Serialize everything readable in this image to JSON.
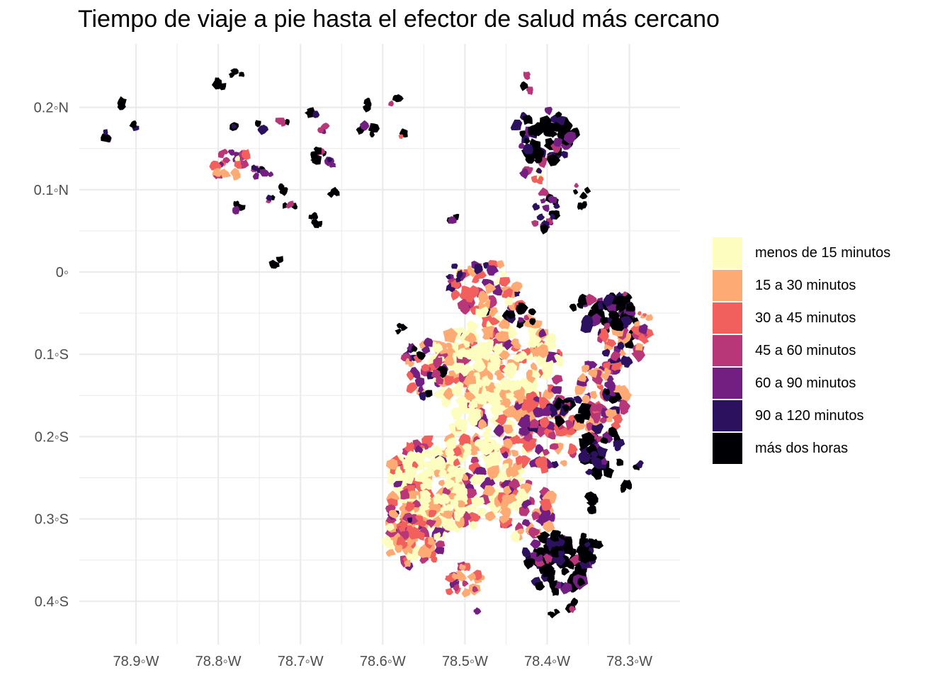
{
  "title": "Tiempo de viaje a pie hasta el efector de salud más cercano",
  "axes": {
    "x_ticks": [
      {
        "value": -78.9,
        "label": "78.9◦W"
      },
      {
        "value": -78.8,
        "label": "78.8◦W"
      },
      {
        "value": -78.7,
        "label": "78.7◦W"
      },
      {
        "value": -78.6,
        "label": "78.6◦W"
      },
      {
        "value": -78.5,
        "label": "78.5◦W"
      },
      {
        "value": -78.4,
        "label": "78.4◦W"
      },
      {
        "value": -78.3,
        "label": "78.3◦W"
      }
    ],
    "y_ticks": [
      {
        "value": 0.2,
        "label": "0.2◦N"
      },
      {
        "value": 0.1,
        "label": "0.1◦N"
      },
      {
        "value": 0.0,
        "label": "0◦"
      },
      {
        "value": -0.1,
        "label": "0.1◦S"
      },
      {
        "value": -0.2,
        "label": "0.2◦S"
      },
      {
        "value": -0.3,
        "label": "0.3◦S"
      },
      {
        "value": -0.4,
        "label": "0.4◦S"
      }
    ]
  },
  "legend": [
    {
      "label": "menos de 15 minutos",
      "color": "#fcfdbf"
    },
    {
      "label": "15 a 30 minutos",
      "color": "#feaa74"
    },
    {
      "label": "30 a 45 minutos",
      "color": "#f1605d"
    },
    {
      "label": "45 a 60 minutos",
      "color": "#b73779"
    },
    {
      "label": "60 a 90 minutos",
      "color": "#721f81"
    },
    {
      "label": "90 a 120 minutos",
      "color": "#2c115f"
    },
    {
      "label": "más dos horas",
      "color": "#000004"
    }
  ],
  "colors": {
    "grid": "#ebebeb",
    "tick_text": "#4d4d4d"
  }
}
